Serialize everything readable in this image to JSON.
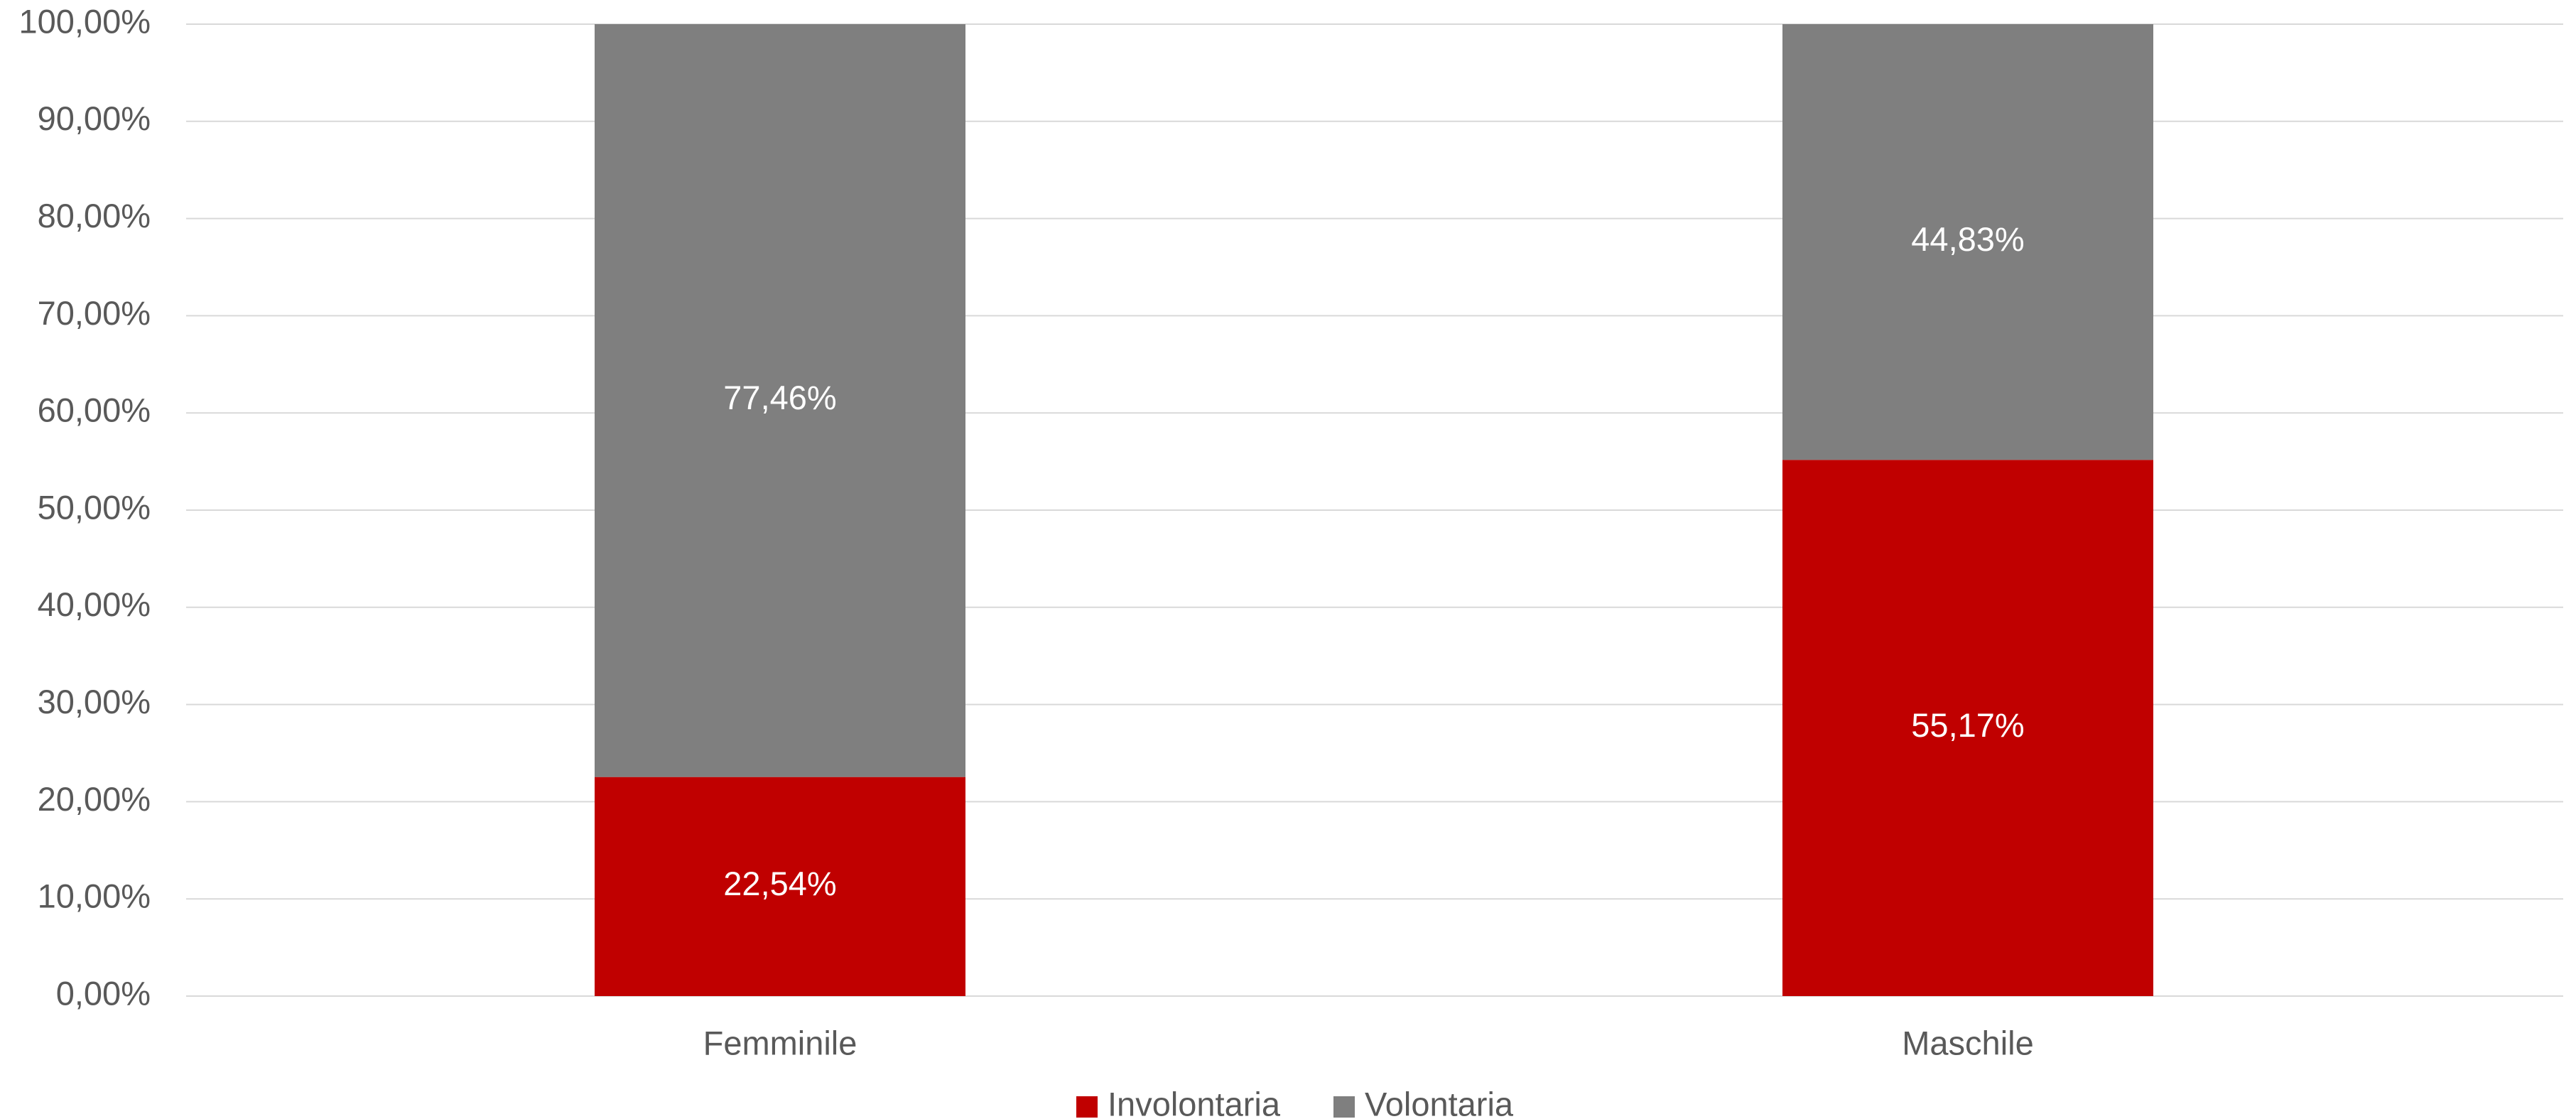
{
  "chart_data": {
    "type": "bar",
    "stacked": true,
    "categories": [
      "Femminile",
      "Maschile"
    ],
    "series": [
      {
        "name": "Involontaria",
        "color": "#c00000",
        "values": [
          22.54,
          55.17
        ],
        "labels": [
          "22,54%",
          "55,17%"
        ]
      },
      {
        "name": "Volontaria",
        "color": "#7f7f7f",
        "values": [
          77.46,
          44.83
        ],
        "labels": [
          "77,46%",
          "44,83%"
        ]
      }
    ],
    "ylim": [
      0,
      100
    ],
    "yticks": [
      0,
      10,
      20,
      30,
      40,
      50,
      60,
      70,
      80,
      90,
      100
    ],
    "ytick_labels": [
      "0,00%",
      "10,00%",
      "20,00%",
      "30,00%",
      "40,00%",
      "50,00%",
      "60,00%",
      "70,00%",
      "80,00%",
      "90,00%",
      "100,00%"
    ],
    "grid": true,
    "legend_position": "bottom",
    "gridline_color": "#d9d9d9"
  }
}
